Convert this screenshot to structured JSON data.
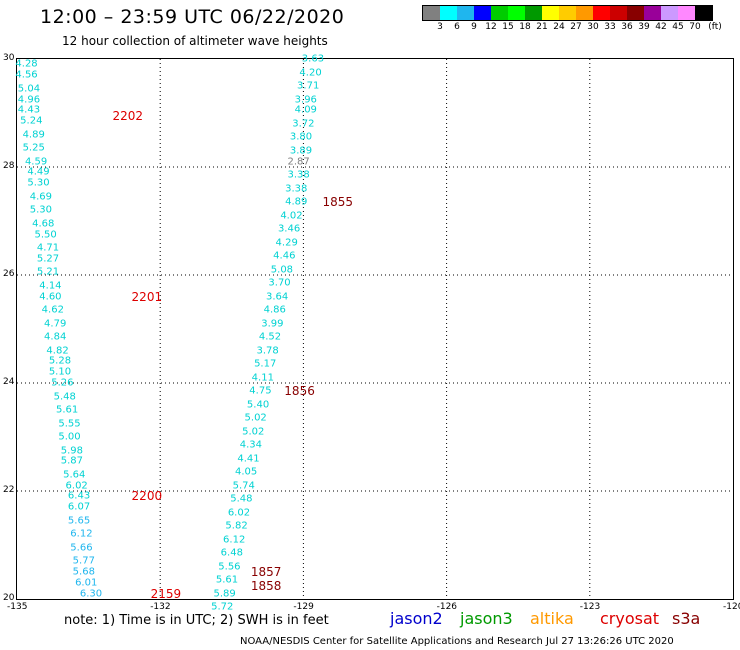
{
  "header": {
    "title": "12:00 – 23:59 UTC 06/22/2020",
    "subtitle": "12 hour collection of altimeter wave heights"
  },
  "colorbar": {
    "colors": [
      "#808080",
      "#00ffff",
      "#1fb6ee",
      "#0000ff",
      "#00cc00",
      "#00ff00",
      "#009900",
      "#ffff00",
      "#ffcc00",
      "#ff9900",
      "#ff0000",
      "#cc0000",
      "#880000",
      "#990099",
      "#cc99ff",
      "#ff88ff",
      "#000000"
    ],
    "labels": [
      "3",
      "6",
      "9",
      "12",
      "15",
      "18",
      "21",
      "24",
      "27",
      "30",
      "33",
      "36",
      "39",
      "42",
      "45",
      "70"
    ],
    "unit": "(ft)"
  },
  "axes": {
    "lon_ticks": [
      "-135",
      "-132",
      "-129",
      "-126",
      "-123",
      "-120"
    ],
    "lat_ticks": [
      "30",
      "28",
      "26",
      "24",
      "22",
      "20"
    ]
  },
  "chart_data": {
    "type": "scatter",
    "title": "12:00 – 23:59 UTC 06/22/2020",
    "xlim": [
      -135,
      -120
    ],
    "ylim": [
      20,
      30
    ],
    "tracks": [
      {
        "color": "#00d2d2",
        "points": [
          {
            "x": -134.8,
            "y": 29.9,
            "v": "4.28"
          },
          {
            "x": -134.8,
            "y": 29.7,
            "v": "4.56"
          },
          {
            "x": -134.75,
            "y": 29.45,
            "v": "5.04"
          },
          {
            "x": -134.75,
            "y": 29.25,
            "v": "4.96"
          },
          {
            "x": -134.75,
            "y": 29.05,
            "v": "4.43"
          },
          {
            "x": -134.7,
            "y": 28.85,
            "v": "5.24"
          },
          {
            "x": -134.65,
            "y": 28.6,
            "v": "4.89"
          },
          {
            "x": -134.65,
            "y": 28.35,
            "v": "5.25"
          },
          {
            "x": -134.6,
            "y": 28.1,
            "v": "4.59"
          },
          {
            "x": -134.55,
            "y": 27.9,
            "v": "4.49"
          },
          {
            "x": -134.55,
            "y": 27.7,
            "v": "5.30"
          },
          {
            "x": -134.5,
            "y": 27.45,
            "v": "4.69"
          },
          {
            "x": -134.5,
            "y": 27.2,
            "v": "5.30"
          },
          {
            "x": -134.45,
            "y": 26.95,
            "v": "4.68"
          },
          {
            "x": -134.4,
            "y": 26.75,
            "v": "5.50"
          },
          {
            "x": -134.35,
            "y": 26.5,
            "v": "4.71"
          },
          {
            "x": -134.35,
            "y": 26.3,
            "v": "5.27"
          },
          {
            "x": -134.35,
            "y": 26.05,
            "v": "5.21"
          },
          {
            "x": -134.3,
            "y": 25.8,
            "v": "4.14"
          },
          {
            "x": -134.3,
            "y": 25.6,
            "v": "4.60"
          },
          {
            "x": -134.25,
            "y": 25.35,
            "v": "4.62"
          },
          {
            "x": -134.2,
            "y": 25.1,
            "v": "4.79"
          },
          {
            "x": -134.2,
            "y": 24.85,
            "v": "4.84"
          },
          {
            "x": -134.15,
            "y": 24.6,
            "v": "4.82"
          },
          {
            "x": -134.1,
            "y": 24.4,
            "v": "5.28"
          },
          {
            "x": -134.1,
            "y": 24.2,
            "v": "5.10"
          },
          {
            "x": -134.05,
            "y": 24.0,
            "v": "5.26"
          },
          {
            "x": -134.0,
            "y": 23.75,
            "v": "5.48"
          },
          {
            "x": -133.95,
            "y": 23.5,
            "v": "5.61"
          },
          {
            "x": -133.9,
            "y": 23.25,
            "v": "5.55"
          },
          {
            "x": -133.9,
            "y": 23.0,
            "v": "5.00"
          },
          {
            "x": -133.85,
            "y": 22.75,
            "v": "5.98"
          },
          {
            "x": -133.85,
            "y": 22.55,
            "v": "5.87"
          },
          {
            "x": -133.8,
            "y": 22.3,
            "v": "5.64"
          },
          {
            "x": -133.75,
            "y": 22.1,
            "v": "6.02"
          },
          {
            "x": -133.7,
            "y": 21.9,
            "v": "6.43"
          },
          {
            "x": -133.7,
            "y": 21.7,
            "v": "6.07"
          },
          {
            "x": -133.7,
            "y": 21.45,
            "v": "5.65"
          },
          {
            "x": -133.65,
            "y": 21.2,
            "v": "6.12"
          },
          {
            "x": -133.65,
            "y": 20.95,
            "v": "5.66"
          },
          {
            "x": -133.6,
            "y": 20.7,
            "v": "5.77"
          },
          {
            "x": -133.6,
            "y": 20.5,
            "v": "5.68"
          },
          {
            "x": -133.55,
            "y": 20.3,
            "v": "6.01"
          },
          {
            "x": -133.45,
            "y": 20.1,
            "v": "6.30"
          }
        ]
      },
      {
        "color": "#00d2d2",
        "points": [
          {
            "x": -128.8,
            "y": 30.0,
            "v": "3.63"
          },
          {
            "x": -128.85,
            "y": 29.75,
            "v": "4.20"
          },
          {
            "x": -128.9,
            "y": 29.5,
            "v": "3.71"
          },
          {
            "x": -128.95,
            "y": 29.25,
            "v": "3.96"
          },
          {
            "x": -128.95,
            "y": 29.05,
            "v": "4.09"
          },
          {
            "x": -129.0,
            "y": 28.8,
            "v": "3.72"
          },
          {
            "x": -129.05,
            "y": 28.55,
            "v": "3.80"
          },
          {
            "x": -129.05,
            "y": 28.3,
            "v": "3.89"
          },
          {
            "x": -129.1,
            "y": 28.1,
            "v": "2.87",
            "grey": true
          },
          {
            "x": -129.1,
            "y": 27.85,
            "v": "3.38"
          },
          {
            "x": -129.15,
            "y": 27.6,
            "v": "3.38"
          },
          {
            "x": -129.15,
            "y": 27.35,
            "v": "4.89"
          },
          {
            "x": -129.25,
            "y": 27.1,
            "v": "4.02"
          },
          {
            "x": -129.3,
            "y": 26.85,
            "v": "3.46"
          },
          {
            "x": -129.35,
            "y": 26.6,
            "v": "4.29"
          },
          {
            "x": -129.4,
            "y": 26.35,
            "v": "4.46"
          },
          {
            "x": -129.45,
            "y": 26.1,
            "v": "5.08"
          },
          {
            "x": -129.5,
            "y": 25.85,
            "v": "3.70"
          },
          {
            "x": -129.55,
            "y": 25.6,
            "v": "3.64"
          },
          {
            "x": -129.6,
            "y": 25.35,
            "v": "4.86"
          },
          {
            "x": -129.65,
            "y": 25.1,
            "v": "3.99"
          },
          {
            "x": -129.7,
            "y": 24.85,
            "v": "4.52"
          },
          {
            "x": -129.75,
            "y": 24.6,
            "v": "3.78"
          },
          {
            "x": -129.8,
            "y": 24.35,
            "v": "5.17"
          },
          {
            "x": -129.85,
            "y": 24.1,
            "v": "4.11"
          },
          {
            "x": -129.9,
            "y": 23.85,
            "v": "4.75"
          },
          {
            "x": -129.95,
            "y": 23.6,
            "v": "5.40"
          },
          {
            "x": -130.0,
            "y": 23.35,
            "v": "5.02"
          },
          {
            "x": -130.05,
            "y": 23.1,
            "v": "5.02"
          },
          {
            "x": -130.1,
            "y": 22.85,
            "v": "4.34"
          },
          {
            "x": -130.15,
            "y": 22.6,
            "v": "4.41"
          },
          {
            "x": -130.2,
            "y": 22.35,
            "v": "4.05"
          },
          {
            "x": -130.25,
            "y": 22.1,
            "v": "5.74"
          },
          {
            "x": -130.3,
            "y": 21.85,
            "v": "5.48"
          },
          {
            "x": -130.35,
            "y": 21.6,
            "v": "6.02"
          },
          {
            "x": -130.4,
            "y": 21.35,
            "v": "5.82"
          },
          {
            "x": -130.45,
            "y": 21.1,
            "v": "6.12"
          },
          {
            "x": -130.5,
            "y": 20.85,
            "v": "6.48"
          },
          {
            "x": -130.55,
            "y": 20.6,
            "v": "5.56"
          },
          {
            "x": -130.6,
            "y": 20.35,
            "v": "5.61"
          },
          {
            "x": -130.65,
            "y": 20.1,
            "v": "5.89"
          },
          {
            "x": -130.7,
            "y": 19.85,
            "v": "5.72"
          }
        ]
      }
    ],
    "time_labels": [
      {
        "x": -133.0,
        "y": 28.95,
        "v": "2202",
        "color": "#dd0000"
      },
      {
        "x": -132.6,
        "y": 25.6,
        "v": "2201",
        "color": "#dd0000"
      },
      {
        "x": -132.6,
        "y": 21.9,
        "v": "2200",
        "color": "#dd0000"
      },
      {
        "x": -132.2,
        "y": 20.1,
        "v": "2159",
        "color": "#dd0000"
      },
      {
        "x": -128.6,
        "y": 27.35,
        "v": "1855",
        "color": "#880000"
      },
      {
        "x": -129.4,
        "y": 23.85,
        "v": "1856",
        "color": "#880000"
      },
      {
        "x": -130.1,
        "y": 20.5,
        "v": "1857",
        "color": "#880000"
      },
      {
        "x": -130.1,
        "y": 20.25,
        "v": "1858",
        "color": "#880000"
      }
    ]
  },
  "footer": {
    "note": "note: 1) Time is in UTC; 2) SWH is in feet",
    "legend": [
      {
        "label": "jason2",
        "color": "#0000cc"
      },
      {
        "label": "jason3",
        "color": "#009900"
      },
      {
        "label": "altika",
        "color": "#ff9900"
      },
      {
        "label": "cryosat",
        "color": "#dd0000"
      },
      {
        "label": "s3a",
        "color": "#880000"
      }
    ],
    "credit": "NOAA/NESDIS Center for Satellite Applications and Research    Jul 27 13:26:26 UTC 2020"
  }
}
